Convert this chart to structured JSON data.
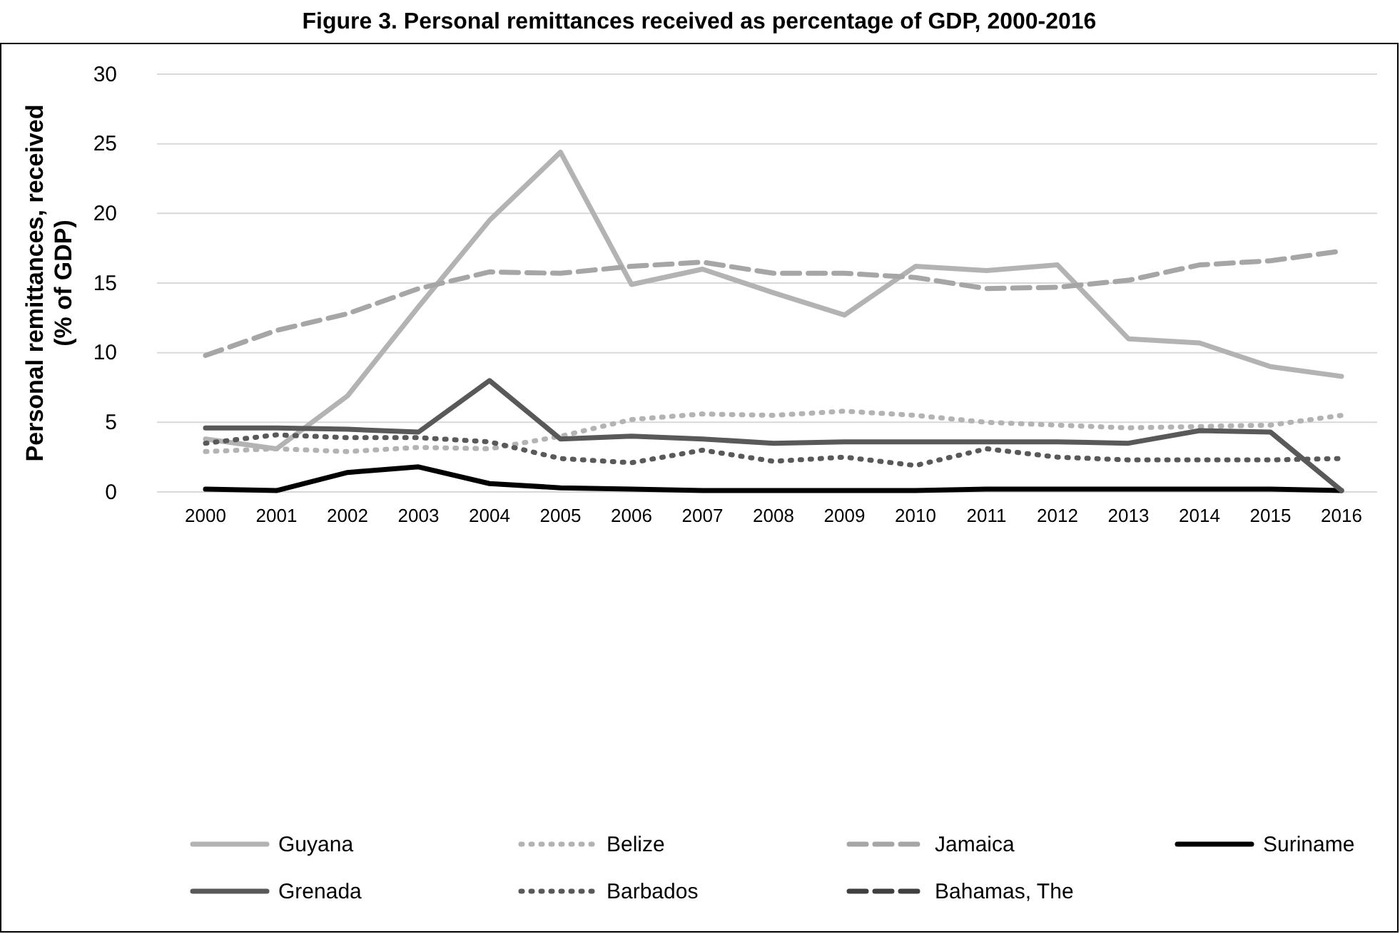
{
  "chart_data": {
    "type": "line",
    "title": "Figure 3. Personal remittances received as percentage of GDP, 2000-2016",
    "ylabel": "Personal remittances, received (% of GDP)",
    "categories": [
      "2000",
      "2001",
      "2002",
      "2003",
      "2004",
      "2005",
      "2006",
      "2007",
      "2008",
      "2009",
      "2010",
      "2011",
      "2012",
      "2013",
      "2014",
      "2015",
      "2016"
    ],
    "series": [
      {
        "name": "Guyana",
        "color": "#b3b3b3",
        "line_style": "solid",
        "values": [
          3.8,
          3.1,
          6.9,
          13.3,
          19.5,
          24.4,
          14.9,
          16.0,
          14.3,
          12.7,
          16.2,
          15.9,
          16.3,
          11.0,
          10.7,
          9.0,
          8.3
        ]
      },
      {
        "name": "Belize",
        "color": "#b3b3b3",
        "line_style": "dotted",
        "values": [
          2.9,
          3.1,
          2.9,
          3.2,
          3.1,
          4.0,
          5.2,
          5.6,
          5.5,
          5.8,
          5.5,
          5.0,
          4.8,
          4.6,
          4.7,
          4.8,
          5.5
        ]
      },
      {
        "name": "Jamaica",
        "color": "#a6a6a6",
        "line_style": "dashed",
        "values": [
          9.8,
          11.6,
          12.8,
          14.6,
          15.8,
          15.7,
          16.2,
          16.5,
          15.7,
          15.7,
          15.4,
          14.6,
          14.7,
          15.2,
          16.3,
          16.6,
          17.3
        ]
      },
      {
        "name": "Suriname",
        "color": "#000000",
        "line_style": "solid",
        "values": [
          0.2,
          0.1,
          1.4,
          1.8,
          0.6,
          0.3,
          0.2,
          0.1,
          0.1,
          0.1,
          0.1,
          0.2,
          0.2,
          0.2,
          0.2,
          0.2,
          0.1
        ]
      },
      {
        "name": "Grenada",
        "color": "#595959",
        "line_style": "solid",
        "values": [
          4.6,
          4.6,
          4.5,
          4.3,
          8.0,
          3.8,
          4.0,
          3.8,
          3.5,
          3.6,
          3.6,
          3.6,
          3.6,
          3.5,
          4.4,
          4.3,
          0.1
        ]
      },
      {
        "name": "Barbados",
        "color": "#595959",
        "line_style": "dotted",
        "values": [
          3.5,
          4.1,
          3.9,
          3.9,
          3.6,
          2.4,
          2.1,
          3.0,
          2.2,
          2.5,
          1.9,
          3.1,
          2.5,
          2.3,
          2.3,
          2.3,
          2.4
        ]
      },
      {
        "name": "Bahamas, The",
        "color": "#404040",
        "line_style": "dashed",
        "values": [
          null,
          null,
          null,
          null,
          null,
          null,
          null,
          null,
          null,
          null,
          null,
          null,
          null,
          null,
          null,
          null,
          null
        ]
      }
    ],
    "ylim": [
      0,
      30
    ],
    "yticks": [
      0,
      5,
      10,
      15,
      20,
      25,
      30
    ],
    "grid": "y",
    "legend": "bottom",
    "marker": "none"
  }
}
